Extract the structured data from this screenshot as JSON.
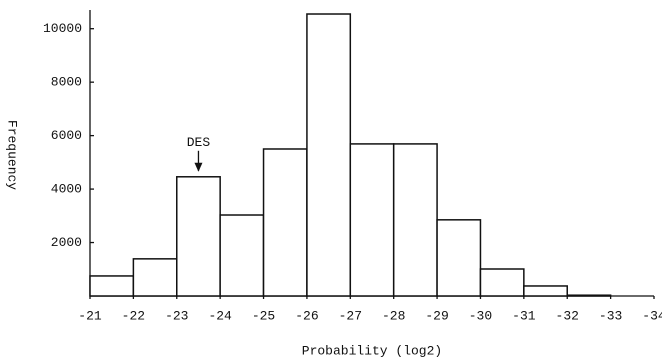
{
  "chart_data": {
    "type": "histogram",
    "xlabel": "Probability (log2)",
    "ylabel": "Frequency",
    "bins": [
      -21,
      -22,
      -23,
      -24,
      -25,
      -26,
      -27,
      -28,
      -29,
      -30,
      -31,
      -32,
      -33,
      -34
    ],
    "values": [
      750,
      1390,
      4460,
      3030,
      5500,
      10550,
      5690,
      5690,
      2850,
      1010,
      375,
      30,
      0
    ],
    "color": "#ffffff",
    "xlim": [
      -21,
      -34
    ],
    "xticks": [
      -21,
      -22,
      -23,
      -24,
      -25,
      -26,
      -27,
      -28,
      -29,
      -30,
      -31,
      -32,
      -33,
      -34
    ],
    "ylim": [
      0,
      10700
    ],
    "yticks": [
      2000,
      4000,
      6000,
      8000,
      10000
    ],
    "annotations": [
      {
        "text": "DES",
        "x": -23.5
      }
    ]
  }
}
